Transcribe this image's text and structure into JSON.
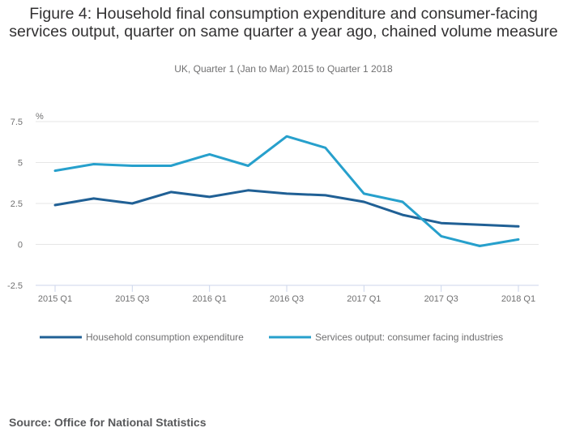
{
  "chart_data": {
    "type": "line",
    "title": "Figure 4: Household final consumption expenditure and consumer-facing services output, quarter on same quarter a year ago, chained volume measure",
    "subtitle": "UK, Quarter 1 (Jan to Mar) 2015 to Quarter 1 2018",
    "ylabel": "%",
    "xlabel": "",
    "ylim": [
      -2.5,
      7.5
    ],
    "yticks": [
      -2.5,
      0,
      2.5,
      5,
      7.5
    ],
    "ytick_labels": [
      "-2.5",
      "0",
      "2.5",
      "5",
      "7.5"
    ],
    "x": [
      "2015 Q1",
      "2015 Q2",
      "2015 Q3",
      "2015 Q4",
      "2016 Q1",
      "2016 Q2",
      "2016 Q3",
      "2016 Q4",
      "2017 Q1",
      "2017 Q2",
      "2017 Q3",
      "2017 Q4",
      "2018 Q1"
    ],
    "xtick_labels": [
      "2015 Q1",
      "2015 Q3",
      "2016 Q1",
      "2016 Q3",
      "2017 Q1",
      "2017 Q3",
      "2018 Q1"
    ],
    "grid": true,
    "legend_position": "bottom",
    "series": [
      {
        "name": "Household consumption expenditure",
        "color": "#206095",
        "values": [
          2.4,
          2.8,
          2.5,
          3.2,
          2.9,
          3.3,
          3.1,
          3.0,
          2.6,
          1.8,
          1.3,
          1.2,
          1.1
        ]
      },
      {
        "name": "Services output: consumer facing industries",
        "color": "#27a0cc",
        "values": [
          4.5,
          4.9,
          4.8,
          4.8,
          5.5,
          4.8,
          6.6,
          5.9,
          3.1,
          2.6,
          0.5,
          -0.1,
          0.3
        ]
      }
    ]
  },
  "source": "Source: Office for National Statistics"
}
